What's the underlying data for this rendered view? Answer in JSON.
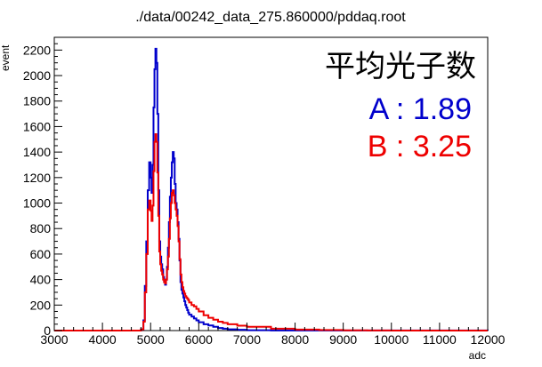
{
  "chart_data": {
    "type": "histogram",
    "title": "./data/00242_data_275.860000/pddaq.root",
    "xlabel": "adc",
    "ylabel": "event",
    "xlim": [
      3000,
      12000
    ],
    "ylim": [
      0,
      2300
    ],
    "xticks": [
      3000,
      4000,
      5000,
      6000,
      7000,
      8000,
      9000,
      10000,
      11000,
      12000
    ],
    "yticks": [
      0,
      200,
      400,
      600,
      800,
      1000,
      1200,
      1400,
      1600,
      1800,
      2000,
      2200
    ],
    "grid": false,
    "annotation": {
      "heading": "平均光子数",
      "lines": [
        {
          "text": "A : 1.89",
          "color": "#0000cc"
        },
        {
          "text": "B : 3.25",
          "color": "#ee0000"
        }
      ]
    },
    "series": [
      {
        "color": "#0000cc",
        "x": [
          3000,
          4700,
          4800,
          4850,
          4880,
          4910,
          4940,
          4970,
          5000,
          5020,
          5040,
          5060,
          5080,
          5100,
          5120,
          5140,
          5160,
          5180,
          5200,
          5220,
          5240,
          5260,
          5280,
          5300,
          5320,
          5340,
          5360,
          5380,
          5400,
          5420,
          5440,
          5460,
          5480,
          5500,
          5520,
          5540,
          5560,
          5580,
          5600,
          5620,
          5640,
          5660,
          5680,
          5700,
          5720,
          5740,
          5760,
          5780,
          5800,
          5850,
          5900,
          5950,
          6000,
          6100,
          6200,
          6300,
          6400,
          6500,
          6600,
          6800,
          7000,
          7500,
          12000
        ],
        "y": [
          0,
          0,
          10,
          80,
          350,
          700,
          1100,
          1320,
          1200,
          1080,
          1300,
          1750,
          2050,
          2210,
          2100,
          1700,
          1100,
          700,
          580,
          520,
          480,
          420,
          380,
          360,
          400,
          500,
          650,
          850,
          1050,
          1200,
          1320,
          1400,
          1350,
          1150,
          1000,
          950,
          850,
          720,
          550,
          380,
          320,
          290,
          260,
          230,
          200,
          180,
          160,
          140,
          125,
          110,
          95,
          80,
          65,
          50,
          40,
          30,
          20,
          15,
          10,
          6,
          3,
          1,
          0
        ]
      },
      {
        "color": "#ee0000",
        "x": [
          3000,
          4700,
          4800,
          4850,
          4880,
          4910,
          4940,
          4970,
          5000,
          5020,
          5040,
          5060,
          5080,
          5100,
          5120,
          5140,
          5160,
          5180,
          5200,
          5220,
          5240,
          5260,
          5280,
          5300,
          5320,
          5340,
          5360,
          5380,
          5400,
          5420,
          5440,
          5460,
          5480,
          5500,
          5520,
          5540,
          5560,
          5580,
          5600,
          5620,
          5640,
          5660,
          5680,
          5700,
          5720,
          5740,
          5760,
          5780,
          5800,
          5850,
          5900,
          5950,
          6000,
          6100,
          6200,
          6300,
          6400,
          6500,
          6600,
          6800,
          7000,
          7500,
          8000,
          8500,
          9000,
          9500,
          10000,
          12000
        ],
        "y": [
          0,
          0,
          10,
          70,
          300,
          600,
          950,
          1020,
          940,
          860,
          980,
          1250,
          1480,
          1540,
          1480,
          1240,
          900,
          620,
          520,
          470,
          440,
          400,
          380,
          370,
          400,
          480,
          580,
          720,
          880,
          1000,
          1080,
          1100,
          1060,
          1000,
          950,
          900,
          820,
          700,
          560,
          440,
          380,
          340,
          310,
          290,
          270,
          260,
          250,
          240,
          220,
          200,
          190,
          170,
          150,
          120,
          100,
          85,
          70,
          60,
          50,
          38,
          30,
          15,
          8,
          4,
          2,
          1,
          0,
          0
        ]
      }
    ]
  }
}
